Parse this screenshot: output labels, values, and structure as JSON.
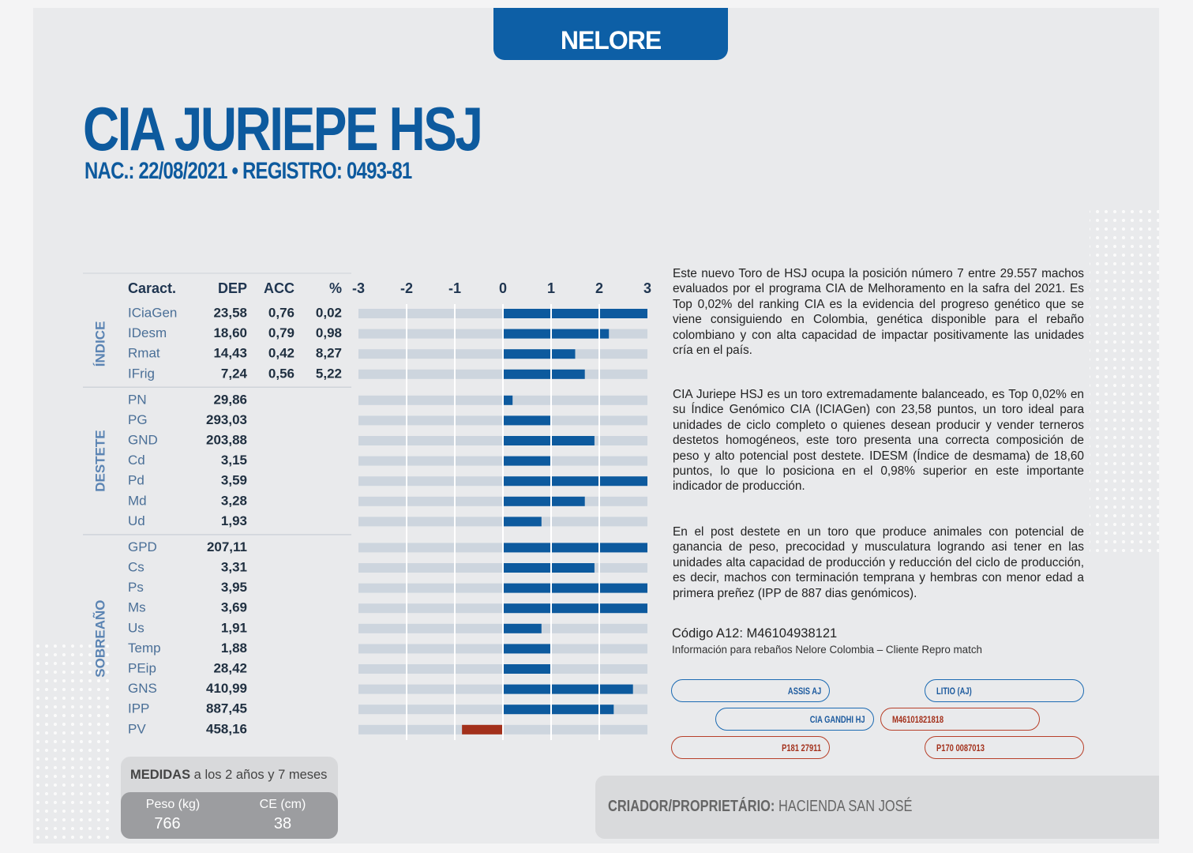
{
  "badge": "NELORE",
  "header": {
    "title": "CIA JURIEPE HSJ",
    "subtitle": "NAC.: 22/08/2021 • REGISTRO: 0493-81"
  },
  "chart_data": {
    "type": "bar",
    "columns": [
      "Caract.",
      "DEP",
      "ACC",
      "%"
    ],
    "xlim": [
      -3,
      3
    ],
    "xticks": [
      -3,
      -2,
      -1,
      0,
      1,
      2,
      3
    ],
    "positive_color": "#0d5a9e",
    "negative_color": "#a3301b",
    "track_color": "#cdd5de",
    "groups": [
      {
        "name": "ÍNDICE",
        "categories": [
          "ICiaGen",
          "IDesm",
          "Rmat",
          "IFrig"
        ],
        "dep": [
          "23,58",
          "18,60",
          "14,43",
          "7,24"
        ],
        "acc": [
          "0,76",
          "0,79",
          "0,42",
          "0,56"
        ],
        "pct": [
          "0,02",
          "0,98",
          "8,27",
          "5,22"
        ],
        "values": [
          3.0,
          2.2,
          1.5,
          1.7
        ]
      },
      {
        "name": "DESTETE",
        "categories": [
          "PN",
          "PG",
          "GND",
          "Cd",
          "Pd",
          "Md",
          "Ud"
        ],
        "dep": [
          "29,86",
          "293,03",
          "203,88",
          "3,15",
          "3,59",
          "3,28",
          "1,93"
        ],
        "values": [
          0.2,
          1.0,
          1.9,
          1.0,
          3.0,
          1.7,
          0.8
        ]
      },
      {
        "name": "SOBREAÑO",
        "categories": [
          "GPD",
          "Cs",
          "Ps",
          "Ms",
          "Us",
          "Temp",
          "PEip",
          "GNS",
          "IPP",
          "PV"
        ],
        "dep": [
          "207,11",
          "3,31",
          "3,95",
          "3,69",
          "1,91",
          "1,88",
          "28,42",
          "410,99",
          "887,45",
          "458,16"
        ],
        "values": [
          3.0,
          1.9,
          3.0,
          3.0,
          0.8,
          1.0,
          1.0,
          2.7,
          2.3,
          -0.85
        ]
      }
    ]
  },
  "description": {
    "paragraphs": [
      "Este nuevo Toro de HSJ ocupa la posición número 7 entre 29.557 machos evaluados por el programa CIA de Melhoramento en la safra del 2021. Es Top 0,02% del ranking CIA es la evidencia del progreso genético que se viene consiguiendo en Colombia, genética disponible para el rebaño colombiano y con alta capacidad de impactar positivamente las unidades cría en el país.",
      "CIA Juriepe HSJ es un toro extremadamente balanceado, es Top 0,02% en su Índice Genómico CIA (ICIAGen) con 23,58 puntos, un toro ideal para unidades de ciclo completo o quienes desean producir y vender terneros destetos homogéneos, este toro presenta una correcta composición de peso y alto potencial post destete. IDESM (Índice de desmama) de 18,60 puntos, lo que lo posiciona en el 0,98% superior en este importante indicador de producción.",
      "En el post destete en un toro que produce animales con potencial de ganancia de peso, precocidad y musculatura logrando asi tener en las unidades alta capacidad de producción y reducción del ciclo de producción, es decir, machos con terminación temprana y hembras con menor edad a primera preñez (IPP de 887 dias genómicos)."
    ],
    "code": "Código A12: M46104938121",
    "info": "Información para rebaños Nelore Colombia – Cliente Repro match"
  },
  "pedigree": {
    "sire": "ASSIS AJ",
    "sire_sire": "LITIO (AJ)",
    "sire_dam": "CIA GANDHI HJ",
    "dam": "M46101821818",
    "dam_sire": "P181 27911",
    "dam_dam": "P170 0087013"
  },
  "measures": {
    "title": "MEDIDAS",
    "subtitle": " a los 2 años y 7 meses",
    "weight_label": "Peso (kg)",
    "weight": "766",
    "ce_label": "CE (cm)",
    "ce": "38"
  },
  "breeder": {
    "label": "CRIADOR/PROPRIETÁRIO:",
    "name": " HACIENDA SAN JOSÉ"
  }
}
